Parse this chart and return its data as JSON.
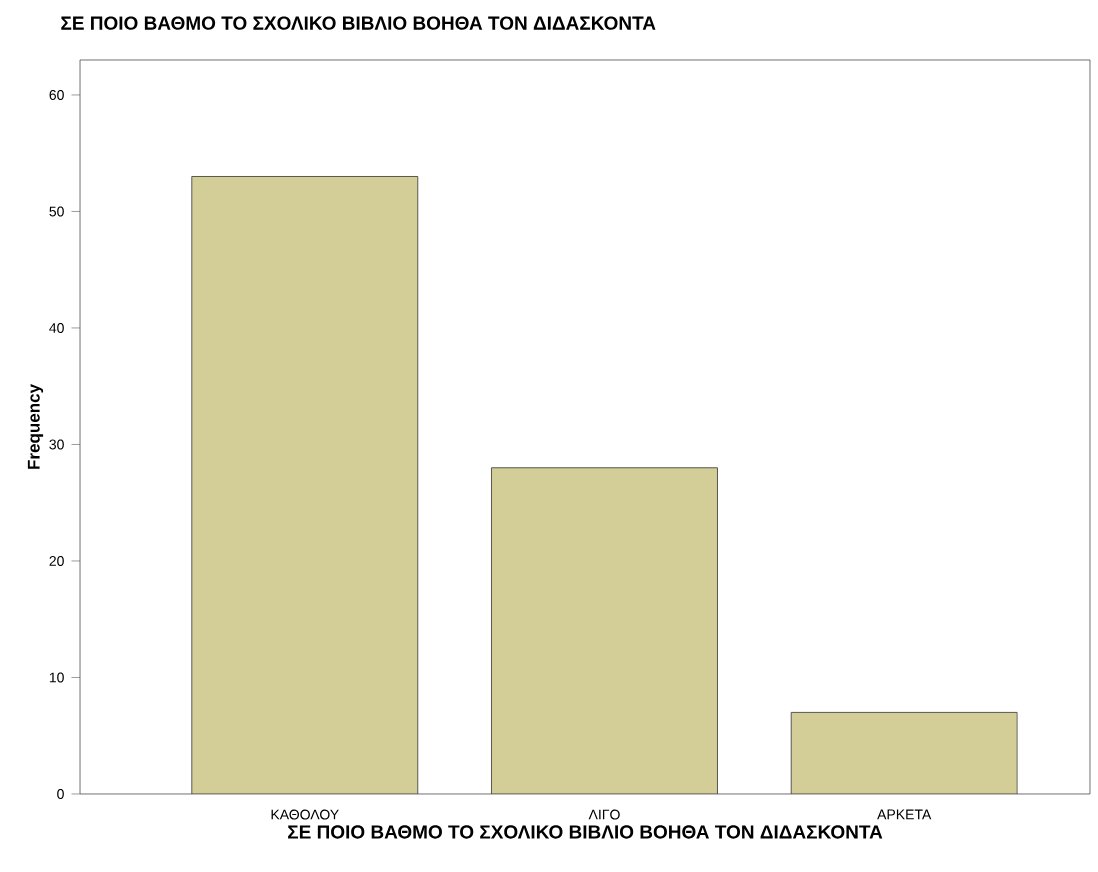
{
  "chart_data": {
    "type": "bar",
    "title": "ΣΕ ΠΟΙΟ ΒΑΘΜΟ ΤΟ ΣΧΟΛΙΚΟ ΒΙΒΛΙΟ ΒΟΗΘΑ ΤΟΝ ΔΙΔΑΣΚΟΝΤΑ",
    "xlabel": "ΣΕ ΠΟΙΟ ΒΑΘΜΟ ΤΟ ΣΧΟΛΙΚΟ ΒΙΒΛΙΟ ΒΟΗΘΑ ΤΟΝ ΔΙΔΑΣΚΟΝΤΑ",
    "ylabel": "Frequency",
    "categories": [
      "ΚΑΘΟΛΟΥ",
      "ΛΙΓΟ",
      "ΑΡΚΕΤΑ"
    ],
    "values": [
      53,
      28,
      7
    ],
    "color": "#d3ce97",
    "ylim": [
      0,
      63
    ],
    "yticks": [
      0,
      10,
      20,
      30,
      40,
      50,
      60
    ],
    "grid": false
  }
}
